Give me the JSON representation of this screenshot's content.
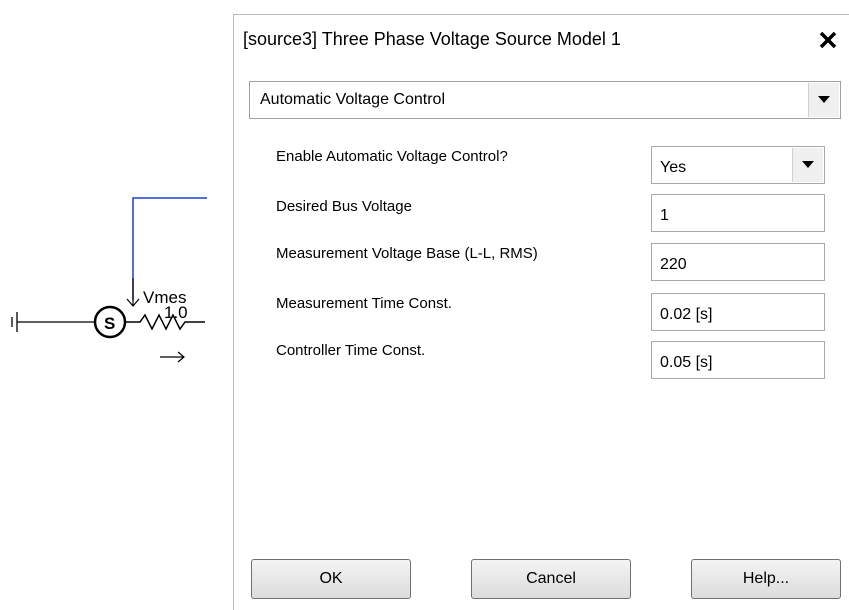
{
  "circuit": {
    "signal": "Vmes",
    "resistance": "1.0"
  },
  "dialog": {
    "title": "[source3] Three Phase Voltage Source Model 1",
    "section": "Automatic Voltage Control",
    "fields": [
      {
        "label": "Enable Automatic Voltage Control?",
        "value": "Yes"
      },
      {
        "label": "Desired Bus Voltage",
        "value": "1"
      },
      {
        "label": "Measurement Voltage Base (L-L, RMS)",
        "value": "220"
      },
      {
        "label": "Measurement Time Const.",
        "value": "0.02 [s]"
      },
      {
        "label": "Controller  Time Const.",
        "value": "0.05 [s]"
      }
    ],
    "buttons": [
      "OK",
      "Cancel",
      "Help..."
    ]
  }
}
